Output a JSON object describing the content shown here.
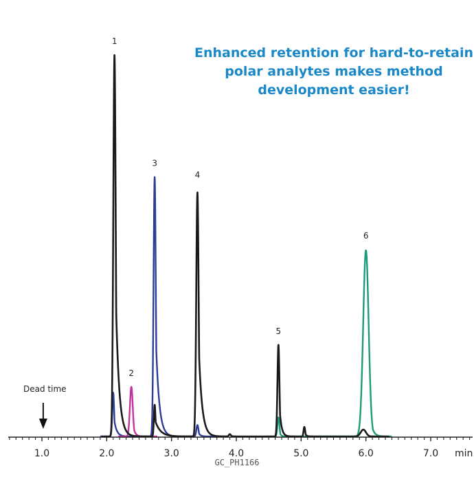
{
  "callout": {
    "line1": "Enhanced retention for hard-to-retain",
    "line2": "polar analytes makes method",
    "line3": "development easier!"
  },
  "dead_time_label": "Dead time",
  "footer_code": "GC_PH1166",
  "chart_data": {
    "type": "line",
    "xlabel": "min.",
    "xlim": [
      0.5,
      7.8
    ],
    "ylim": [
      0,
      100
    ],
    "x_ticks": [
      1.0,
      2.0,
      3.0,
      4.0,
      5.0,
      6.0,
      7.0
    ],
    "x_tick_labels": [
      "1.0",
      "2.0",
      "3.0",
      "4.0",
      "5.0",
      "6.0",
      "7.0"
    ],
    "dead_time": 1.02,
    "peak_labels": [
      {
        "label": "1",
        "x": 2.12,
        "y": 100
      },
      {
        "label": "2",
        "x": 2.38,
        "y": 13
      },
      {
        "label": "3",
        "x": 2.74,
        "y": 68
      },
      {
        "label": "4",
        "x": 3.4,
        "y": 65
      },
      {
        "label": "5",
        "x": 4.65,
        "y": 24
      },
      {
        "label": "6",
        "x": 6.0,
        "y": 49
      }
    ],
    "series": [
      {
        "color": "#1a1a1a",
        "peaks": [
          {
            "rt": 2.12,
            "height": 100,
            "width": 0.018,
            "tail": 0.05
          },
          {
            "rt": 2.74,
            "height": 8.3,
            "width": 0.012,
            "tail": 0.08
          },
          {
            "rt": 3.4,
            "height": 64.0,
            "width": 0.018,
            "tail": 0.05
          },
          {
            "rt": 3.9,
            "height": 0.6,
            "width": 0.015,
            "tail": 0.02
          },
          {
            "rt": 4.65,
            "height": 24.0,
            "width": 0.015,
            "tail": 0.03
          },
          {
            "rt": 5.05,
            "height": 2.5,
            "width": 0.012,
            "tail": 0.02
          },
          {
            "rt": 5.96,
            "height": 1.8,
            "width": 0.04,
            "tail": 0.03
          }
        ]
      },
      {
        "color": "#2b3d97",
        "peaks": [
          {
            "rt": 2.1,
            "height": 11.5,
            "width": 0.014,
            "tail": 0.04
          },
          {
            "rt": 2.74,
            "height": 68.0,
            "width": 0.017,
            "tail": 0.05
          },
          {
            "rt": 3.4,
            "height": 3.0,
            "width": 0.016,
            "tail": 0.03
          }
        ]
      },
      {
        "color": "#c2339c",
        "peaks": [
          {
            "rt": 2.38,
            "height": 13.0,
            "width": 0.022,
            "tail": 0.03
          }
        ]
      },
      {
        "color": "#1d9a7a",
        "peaks": [
          {
            "rt": 4.65,
            "height": 5.0,
            "width": 0.015,
            "tail": 0.02
          },
          {
            "rt": 6.0,
            "height": 48.8,
            "width": 0.042,
            "tail": 0.04
          }
        ]
      }
    ]
  }
}
